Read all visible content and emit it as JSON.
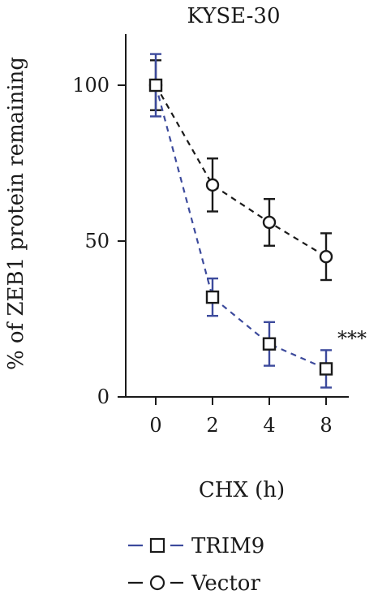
{
  "chart_data": {
    "type": "line",
    "title": "KYSE-30",
    "xlabel": "CHX (h)",
    "ylabel": "% of ZEB1 protein remaining",
    "categories": [
      "0",
      "2",
      "4",
      "8"
    ],
    "ylim": [
      0,
      115
    ],
    "yticks": [
      0,
      50,
      100
    ],
    "grid": false,
    "legend_position": "bottom",
    "series": [
      {
        "name": "TRIM9",
        "color": "#3c4a9c",
        "marker": "square",
        "line_style": "dashed",
        "values": [
          100,
          32,
          17,
          9
        ],
        "error": [
          10,
          6,
          7,
          6
        ]
      },
      {
        "name": "Vector",
        "color": "#1a1a1a",
        "marker": "circle",
        "line_style": "dashed",
        "values": [
          100,
          68,
          56,
          45
        ],
        "error": [
          8,
          8.5,
          7.5,
          7.5
        ]
      }
    ],
    "annotations": [
      {
        "text": "***",
        "category": "8",
        "value": 12
      }
    ]
  }
}
